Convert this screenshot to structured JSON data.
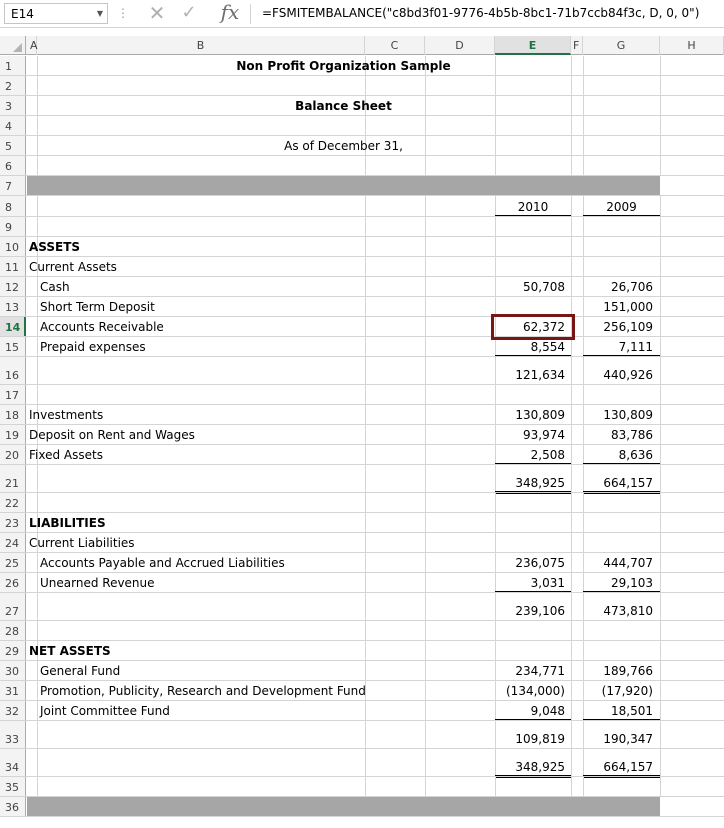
{
  "formula_bar": {
    "name_box": "E14",
    "dots": "⋮",
    "cancel_icon": "✕",
    "enter_icon": "✓",
    "fx_label": "fx",
    "formula": "=FSMITEMBALANCE(\"c8bd3f01-9776-4b5b-8bc1-71b7ccb84f3c, D, 0, 0\")"
  },
  "columns": [
    "A",
    "B",
    "C",
    "D",
    "E",
    "F",
    "G",
    "H"
  ],
  "selected_column": "E",
  "selected_row": "14",
  "accent_color": "#217346",
  "selection_border_color": "#7a1515",
  "sheet": {
    "title": "Non Profit Organization Sample",
    "subtitle": "Balance Sheet",
    "date_line": "As of December 31,",
    "year_current": "2010",
    "year_prior": "2009",
    "rows": [
      {
        "n": "10",
        "label": "ASSETS",
        "bold": true
      },
      {
        "n": "11",
        "label": "Current Assets"
      },
      {
        "n": "12",
        "label": "Cash",
        "indent": true,
        "e": "50,708",
        "g": "26,706"
      },
      {
        "n": "13",
        "label": "Short Term Deposit",
        "indent": true,
        "e": "",
        "g": "151,000"
      },
      {
        "n": "14",
        "label": "Accounts Receivable",
        "indent": true,
        "e": "62,372",
        "g": "256,109"
      },
      {
        "n": "15",
        "label": "Prepaid expenses",
        "indent": true,
        "e": "8,554",
        "g": "7,111"
      },
      {
        "n": "16",
        "label": "",
        "e": "121,634",
        "g": "440,926"
      },
      {
        "n": "17",
        "label": ""
      },
      {
        "n": "18",
        "label": "Investments",
        "e": "130,809",
        "g": "130,809"
      },
      {
        "n": "19",
        "label": "Deposit on Rent and Wages",
        "e": "93,974",
        "g": "83,786"
      },
      {
        "n": "20",
        "label": "Fixed Assets",
        "e": "2,508",
        "g": "8,636"
      },
      {
        "n": "21",
        "label": "",
        "e": "348,925",
        "g": "664,157"
      },
      {
        "n": "22",
        "label": ""
      },
      {
        "n": "23",
        "label": "LIABILITIES",
        "bold": true
      },
      {
        "n": "24",
        "label": "Current Liabilities"
      },
      {
        "n": "25",
        "label": "Accounts Payable and Accrued Liabilities",
        "indent": true,
        "e": "236,075",
        "g": "444,707"
      },
      {
        "n": "26",
        "label": "Unearned Revenue",
        "indent": true,
        "e": "3,031",
        "g": "29,103"
      },
      {
        "n": "27",
        "label": "",
        "e": "239,106",
        "g": "473,810"
      },
      {
        "n": "28",
        "label": ""
      },
      {
        "n": "29",
        "label": "NET ASSETS",
        "bold": true
      },
      {
        "n": "30",
        "label": "General Fund",
        "indent": true,
        "e": "234,771",
        "g": "189,766"
      },
      {
        "n": "31",
        "label": "Promotion, Publicity, Research and Development Fund",
        "indent": true,
        "e": "(134,000)",
        "g": "(17,920)"
      },
      {
        "n": "32",
        "label": "Joint Committee Fund",
        "indent": true,
        "e": "9,048",
        "g": "18,501"
      },
      {
        "n": "33",
        "label": "",
        "e": "109,819",
        "g": "190,347"
      },
      {
        "n": "34",
        "label": "",
        "e": "348,925",
        "g": "664,157"
      },
      {
        "n": "35",
        "label": ""
      },
      {
        "n": "36",
        "label": ""
      }
    ]
  }
}
